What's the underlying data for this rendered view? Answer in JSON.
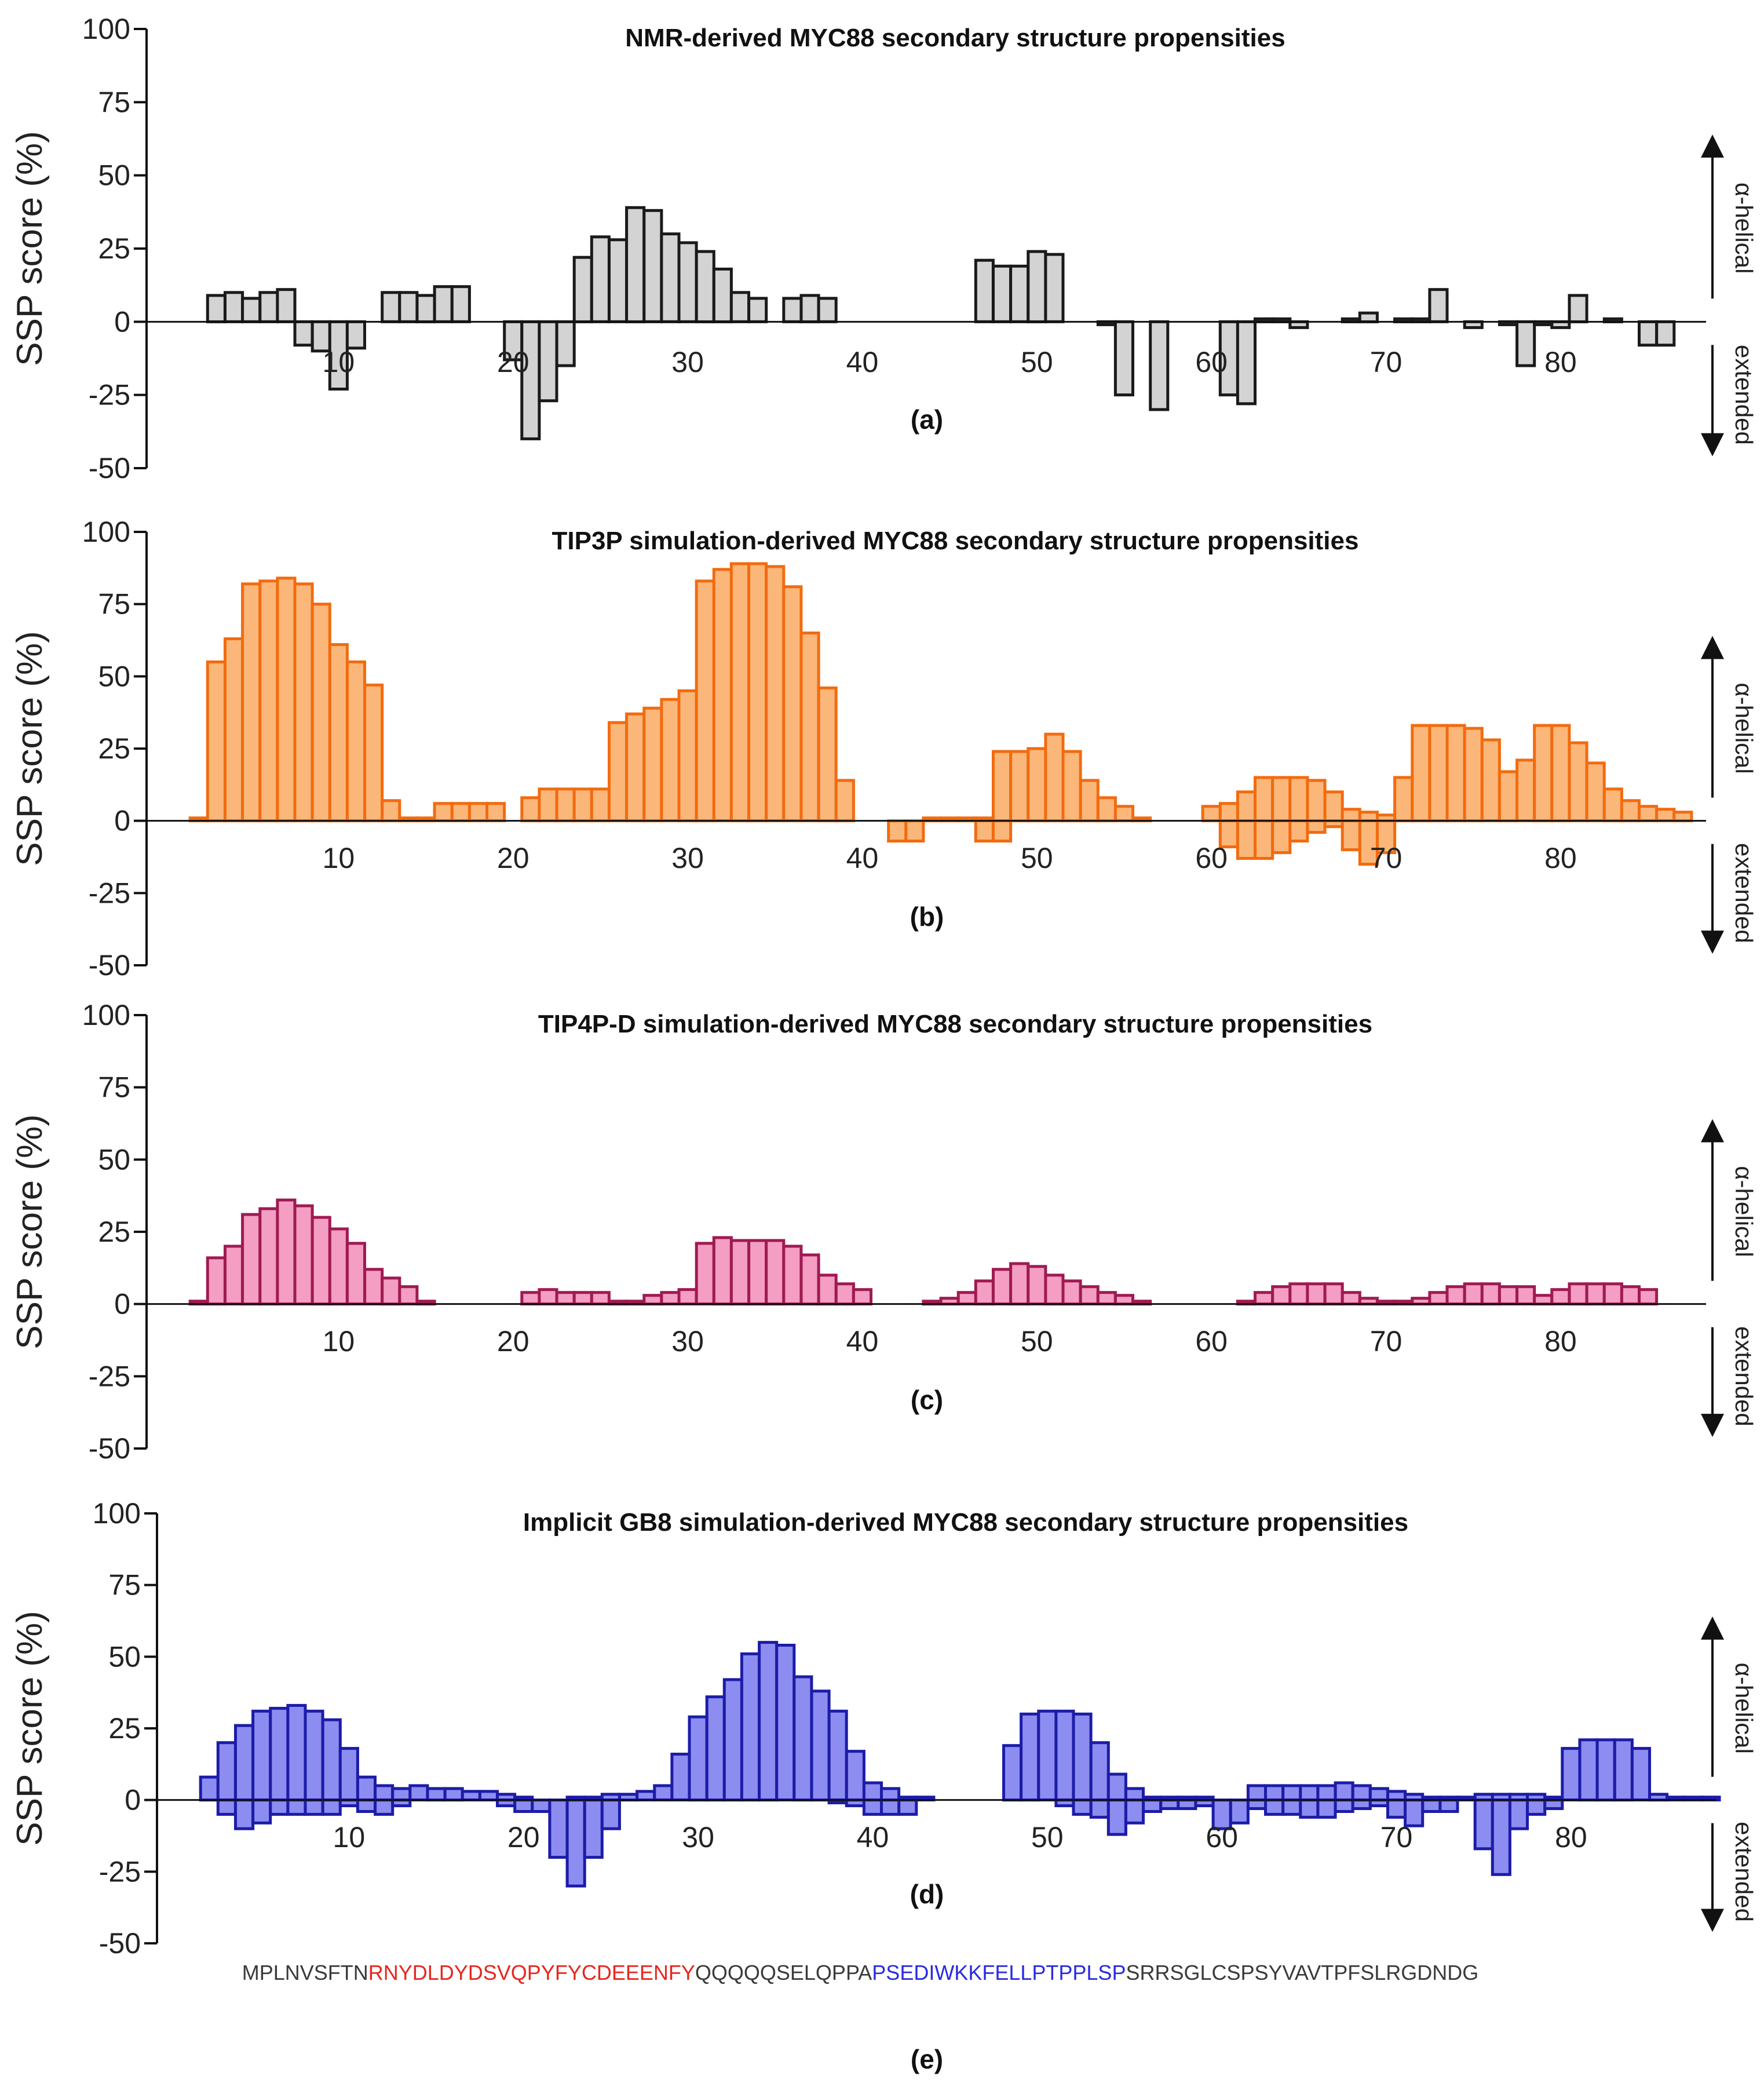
{
  "chart_data": [
    {
      "type": "bar",
      "panel_label": "(a)",
      "title": "NMR-derived MYC88 secondary structure propensities",
      "ylabel": "SSP score (%)",
      "ylim": [
        -50,
        100
      ],
      "yticks": [
        "100",
        "75",
        "50",
        "25",
        "0",
        "-25",
        "-50"
      ],
      "xticks": [
        "10",
        "20",
        "30",
        "40",
        "50",
        "60",
        "70",
        "80"
      ],
      "xlim": [
        0,
        88
      ],
      "helix_label": "α-helical",
      "extended_label": "extended",
      "colors": {
        "fill": "#d3d3d3",
        "stroke": "#1a1a1a"
      },
      "series": [
        {
          "name": "NMR",
          "x_start": 3,
          "values": [
            9,
            10,
            8,
            10,
            11,
            -8,
            -10,
            -23,
            -9,
            0,
            10,
            10,
            9,
            12,
            12,
            0,
            0,
            -13,
            -40,
            -27,
            -15,
            22,
            29,
            28,
            39,
            38,
            30,
            27,
            24,
            18,
            10,
            8,
            0,
            8,
            9,
            8,
            0,
            0,
            0,
            0,
            0,
            0,
            0,
            0,
            21,
            19,
            19,
            24,
            23,
            0,
            0,
            -1,
            -25,
            0,
            -30,
            0,
            0,
            0,
            -25,
            -28,
            1,
            1,
            -2,
            0,
            0,
            1,
            3,
            0,
            1,
            1,
            11,
            0,
            -2,
            0,
            -1,
            -15,
            -1,
            -2,
            9,
            0,
            1,
            0,
            -8,
            -8
          ]
        }
      ]
    },
    {
      "type": "bar",
      "panel_label": "(b)",
      "title": "TIP3P simulation-derived MYC88 secondary structure propensities",
      "ylabel": "SSP score (%)",
      "ylim": [
        -50,
        100
      ],
      "yticks": [
        "100",
        "75",
        "50",
        "25",
        "0",
        "-25",
        "-50"
      ],
      "xticks": [
        "10",
        "20",
        "30",
        "40",
        "50",
        "60",
        "70",
        "80"
      ],
      "xlim": [
        0,
        88
      ],
      "helix_label": "α-helical",
      "extended_label": "extended",
      "colors": {
        "fill": "#fbb77a",
        "stroke": "#f26b0f"
      },
      "series": [
        {
          "name": "helical",
          "x_start": 2,
          "values": [
            1,
            55,
            63,
            82,
            83,
            84,
            82,
            75,
            61,
            55,
            47,
            7,
            1,
            1,
            6,
            6,
            6,
            6,
            0,
            8,
            11,
            11,
            11,
            11,
            34,
            37,
            39,
            42,
            45,
            83,
            87,
            89,
            89,
            88,
            81,
            65,
            46,
            14,
            0,
            0,
            0,
            0,
            1,
            1,
            1,
            1,
            24,
            24,
            25,
            30,
            24,
            14,
            8,
            5,
            1,
            0,
            0,
            0,
            5,
            6,
            10,
            15,
            15,
            15,
            14,
            10,
            4,
            3,
            2,
            15,
            33,
            33,
            33,
            32,
            28,
            17,
            21,
            33,
            33,
            27,
            20,
            11,
            7,
            5,
            4,
            3
          ]
        },
        {
          "name": "extended",
          "x_start": 2,
          "values": [
            0,
            0,
            0,
            0,
            0,
            0,
            0,
            0,
            0,
            0,
            0,
            0,
            0,
            0,
            0,
            0,
            0,
            0,
            0,
            0,
            0,
            0,
            0,
            0,
            0,
            0,
            0,
            0,
            0,
            0,
            0,
            0,
            0,
            0,
            0,
            0,
            0,
            0,
            0,
            0,
            -7,
            -7,
            0,
            0,
            0,
            -7,
            -7,
            0,
            0,
            0,
            0,
            0,
            0,
            0,
            0,
            0,
            0,
            0,
            0,
            -9,
            -13,
            -13,
            -11,
            -7,
            -4,
            -2,
            -10,
            -15,
            -11,
            0,
            0,
            0,
            0,
            0,
            0,
            0,
            0,
            0,
            0,
            0,
            0,
            0,
            0,
            0,
            0,
            0
          ]
        }
      ]
    },
    {
      "type": "bar",
      "panel_label": "(c)",
      "title": "TIP4P-D simulation-derived MYC88 secondary structure propensities",
      "ylabel": "SSP score (%)",
      "ylim": [
        -50,
        100
      ],
      "yticks": [
        "100",
        "75",
        "50",
        "25",
        "0",
        "-25",
        "-50"
      ],
      "xticks": [
        "10",
        "20",
        "30",
        "40",
        "50",
        "60",
        "70",
        "80"
      ],
      "xlim": [
        0,
        88
      ],
      "helix_label": "α-helical",
      "extended_label": "extended",
      "colors": {
        "fill": "#f39ec2",
        "stroke": "#a01a52"
      },
      "series": [
        {
          "name": "helical",
          "x_start": 2,
          "values": [
            1,
            16,
            20,
            31,
            33,
            36,
            34,
            30,
            26,
            21,
            12,
            9,
            6,
            1,
            0,
            0,
            0,
            0,
            0,
            4,
            5,
            4,
            4,
            4,
            1,
            1,
            3,
            4,
            5,
            21,
            23,
            22,
            22,
            22,
            20,
            17,
            10,
            7,
            5,
            0,
            0,
            0,
            1,
            2,
            4,
            8,
            12,
            14,
            13,
            10,
            8,
            6,
            4,
            3,
            1,
            0,
            0,
            0,
            0,
            0,
            1,
            4,
            6,
            7,
            7,
            7,
            4,
            2,
            1,
            1,
            2,
            4,
            6,
            7,
            7,
            6,
            6,
            3,
            5,
            7,
            7,
            7,
            6,
            5,
            0,
            0
          ]
        }
      ]
    },
    {
      "type": "bar",
      "panel_label": "(d)",
      "title": "Implicit GB8 simulation-derived MYC88 secondary structure propensities",
      "ylabel": "SSP score (%)",
      "ylim": [
        -50,
        100
      ],
      "yticks": [
        "100",
        "75",
        "50",
        "25",
        "0",
        "-25",
        "-50"
      ],
      "xticks": [
        "10",
        "20",
        "30",
        "40",
        "50",
        "60",
        "70",
        "80"
      ],
      "xlim": [
        0,
        88
      ],
      "helix_label": "α-helical",
      "extended_label": "extended",
      "colors": {
        "fill": "#8d8cf0",
        "stroke": "#1c1ca8"
      },
      "series": [
        {
          "name": "helical",
          "x_start": 2,
          "values": [
            8,
            20,
            26,
            31,
            32,
            33,
            31,
            28,
            18,
            8,
            5,
            4,
            5,
            4,
            4,
            3,
            3,
            2,
            1,
            0,
            0,
            1,
            1,
            2,
            2,
            3,
            5,
            16,
            29,
            36,
            42,
            51,
            55,
            54,
            43,
            38,
            31,
            17,
            6,
            4,
            1,
            1,
            0,
            0,
            0,
            0,
            19,
            30,
            31,
            31,
            30,
            20,
            9,
            4,
            1,
            1,
            1,
            1,
            0,
            0,
            5,
            5,
            5,
            5,
            5,
            6,
            5,
            4,
            3,
            2,
            1,
            1,
            1,
            2,
            2,
            2,
            2,
            1,
            18,
            21,
            21,
            21,
            18,
            2,
            1,
            1,
            1
          ]
        },
        {
          "name": "extended",
          "x_start": 2,
          "values": [
            0,
            -5,
            -10,
            -8,
            -5,
            -5,
            -5,
            -5,
            -2,
            -4,
            -5,
            -2,
            0,
            0,
            0,
            0,
            0,
            -2,
            -4,
            -4,
            -20,
            -30,
            -20,
            -10,
            0,
            0,
            0,
            0,
            0,
            0,
            0,
            0,
            0,
            0,
            0,
            0,
            -1,
            -2,
            -5,
            -5,
            -5,
            0,
            0,
            0,
            0,
            0,
            0,
            0,
            0,
            -2,
            -5,
            -6,
            -12,
            -8,
            -4,
            -3,
            -3,
            -2,
            -10,
            -8,
            -3,
            -5,
            -5,
            -6,
            -6,
            -4,
            -3,
            -2,
            -6,
            -9,
            -4,
            -4,
            0,
            -17,
            -26,
            -10,
            -5,
            -3,
            0,
            0,
            0,
            0,
            0,
            0,
            0,
            0,
            0
          ]
        }
      ]
    }
  ],
  "sequence": {
    "panel_label": "(e)",
    "segments": [
      {
        "text": "MPLNVSFTN",
        "color": "#3a3a3a"
      },
      {
        "text": "RNYDLDYDSVQPYFYCDEEENFY",
        "color": "#e8261e"
      },
      {
        "text": "QQQQQSELQPPA",
        "color": "#3a3a3a"
      },
      {
        "text": "PSEDIWKKFELLPTPPLSP",
        "color": "#2a2ae0"
      },
      {
        "text": "SRRSGLCSPSYVAVTPFSLRGDNDG",
        "color": "#3a3a3a"
      }
    ]
  }
}
